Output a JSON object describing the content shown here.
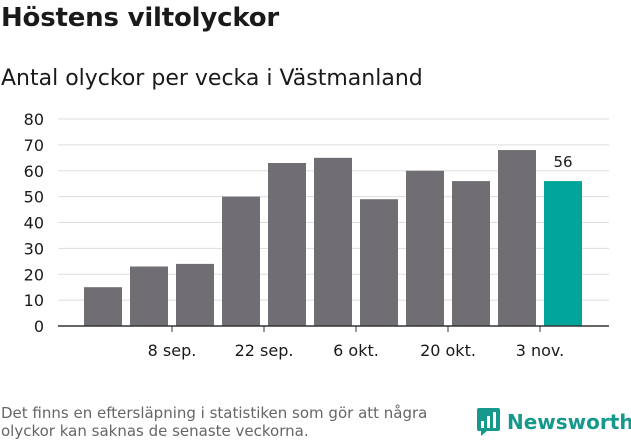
{
  "header": {
    "title": "Höstens viltolyckor",
    "subtitle": "Antal olyckor per vecka i Västmanland"
  },
  "footer": {
    "note": "Det finns en eftersläpning i statistiken som gör att några olyckor kan saknas de senaste veckorna.",
    "brand_name": "Newsworthy",
    "brand_icon": "newsworthy-logo-icon"
  },
  "colors": {
    "bar": "#706e72",
    "highlight": "#00a499",
    "grid": "#dddddd",
    "axis": "#333333",
    "brand": "#16998c"
  },
  "chart_data": {
    "type": "bar",
    "title": "Höstens viltolyckor",
    "subtitle": "Antal olyckor per vecka i Västmanland",
    "values": [
      15,
      23,
      24,
      50,
      63,
      65,
      49,
      60,
      56,
      68,
      56
    ],
    "x_tick_labels": [
      {
        "label": "8 sep.",
        "index": 1.5
      },
      {
        "label": "22 sep.",
        "index": 3.5
      },
      {
        "label": "6 okt.",
        "index": 5.5
      },
      {
        "label": "20 okt.",
        "index": 7.5
      },
      {
        "label": "3 nov.",
        "index": 9.5
      }
    ],
    "ylim": [
      0,
      80
    ],
    "yticks": [
      0,
      10,
      20,
      30,
      40,
      50,
      60,
      70,
      80
    ],
    "highlight_index": 10,
    "data_labels": [
      {
        "index": 10,
        "text": "56"
      }
    ],
    "grid": true,
    "xlabel": "",
    "ylabel": ""
  }
}
